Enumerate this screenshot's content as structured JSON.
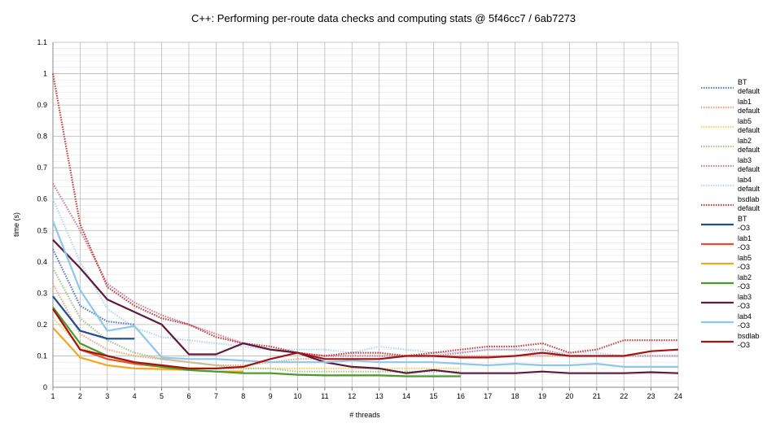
{
  "chart_data": {
    "type": "line",
    "title": "C++: Performing per-route data checks and computing stats @ 5f46cc7 / 6ab7273",
    "xlabel": "# threads",
    "ylabel": "time (s)",
    "xlim": [
      1,
      24
    ],
    "ylim": [
      0,
      1.1
    ],
    "x_ticks": [
      1,
      2,
      3,
      4,
      5,
      6,
      7,
      8,
      9,
      10,
      11,
      12,
      13,
      14,
      15,
      16,
      17,
      18,
      19,
      20,
      21,
      22,
      23,
      24
    ],
    "y_ticks": [
      0,
      0.1,
      0.2,
      0.3,
      0.4,
      0.5,
      0.6,
      0.7,
      0.8,
      0.9,
      1,
      1.1
    ],
    "y_tick_labels": [
      "0",
      "0.1",
      "0.2",
      "0.3",
      "0.4",
      "0.5",
      "0.6",
      "0.7",
      "0.8",
      "0.9",
      "1",
      "1.1"
    ],
    "grid": true,
    "legend_position": "right",
    "series": [
      {
        "name": "BT default",
        "line1": "BT",
        "line2": "default",
        "color": "#5a7fb5",
        "style": "dotted",
        "x": [
          1,
          2,
          3,
          4
        ],
        "values": [
          0.44,
          0.26,
          0.21,
          0.2
        ]
      },
      {
        "name": "lab1 default",
        "line1": "lab1",
        "line2": "default",
        "color": "#f4a582",
        "style": "dotted",
        "x": [
          1,
          2,
          3,
          4,
          5,
          6,
          7,
          8,
          9,
          10,
          11,
          12,
          13,
          14,
          15,
          16,
          17,
          18,
          19,
          20,
          21,
          22,
          23,
          24
        ],
        "values": [
          0.33,
          0.17,
          0.12,
          0.1,
          0.09,
          0.08,
          0.07,
          0.07,
          0.08,
          0.09,
          0.09,
          0.09,
          0.09,
          0.1,
          0.1,
          0.1,
          0.1,
          0.1,
          0.1,
          0.1,
          0.1,
          0.1,
          0.1,
          0.1
        ]
      },
      {
        "name": "lab5 default",
        "line1": "lab5",
        "line2": "default",
        "color": "#f2d36b",
        "style": "dotted",
        "x": [
          1,
          2,
          3,
          4,
          5,
          6,
          7,
          8,
          9,
          10,
          11,
          12,
          13,
          14,
          15,
          16
        ],
        "values": [
          0.22,
          0.13,
          0.09,
          0.08,
          0.07,
          0.06,
          0.06,
          0.06,
          0.06,
          0.06,
          0.06,
          0.06,
          0.06,
          0.06,
          0.06,
          0.06
        ]
      },
      {
        "name": "lab2 default",
        "line1": "lab2",
        "line2": "default",
        "color": "#a6c98c",
        "style": "dotted",
        "x": [
          1,
          2,
          3,
          4,
          5,
          6,
          7,
          8,
          9,
          10,
          11,
          12,
          13,
          14,
          15,
          16
        ],
        "values": [
          0.38,
          0.22,
          0.15,
          0.11,
          0.09,
          0.08,
          0.07,
          0.06,
          0.06,
          0.05,
          0.05,
          0.05,
          0.05,
          0.05,
          0.05,
          0.05
        ]
      },
      {
        "name": "lab3 default",
        "line1": "lab3",
        "line2": "default",
        "color": "#c4819a",
        "style": "dotted",
        "x": [
          1,
          2,
          3,
          4,
          5,
          6,
          7,
          8,
          9,
          10,
          11,
          12,
          13,
          14,
          15,
          16,
          17,
          18,
          19,
          20,
          21,
          22,
          23,
          24
        ],
        "values": [
          0.65,
          0.5,
          0.33,
          0.27,
          0.23,
          0.2,
          0.17,
          0.14,
          0.12,
          0.11,
          0.1,
          0.1,
          0.1,
          0.1,
          0.1,
          0.11,
          0.12,
          0.12,
          0.12,
          0.1,
          0.1,
          0.1,
          0.1,
          0.1
        ]
      },
      {
        "name": "lab4 default",
        "line1": "lab4",
        "line2": "default",
        "color": "#b8d8f0",
        "style": "dotted",
        "x": [
          1,
          2,
          3,
          4,
          5,
          6,
          7,
          8,
          9,
          10,
          11,
          12,
          13,
          14,
          15,
          16,
          17,
          18,
          19,
          20,
          21,
          22,
          23,
          24
        ],
        "values": [
          0.6,
          0.4,
          0.25,
          0.19,
          0.16,
          0.15,
          0.14,
          0.13,
          0.12,
          0.12,
          0.12,
          0.11,
          0.13,
          0.12,
          0.11,
          0.11,
          0.12,
          0.12,
          0.11,
          0.11,
          0.11,
          0.1,
          0.1,
          0.1
        ]
      },
      {
        "name": "bsdlab default",
        "line1": "bsdlab",
        "line2": "default",
        "color": "#c43c3c",
        "style": "dotted",
        "x": [
          1,
          2,
          3,
          4,
          5,
          6,
          7,
          8,
          9,
          10,
          11,
          12,
          13,
          14,
          15,
          16,
          17,
          18,
          19,
          20,
          21,
          22,
          23,
          24
        ],
        "values": [
          1.0,
          0.52,
          0.32,
          0.26,
          0.22,
          0.2,
          0.16,
          0.14,
          0.13,
          0.11,
          0.1,
          0.11,
          0.11,
          0.1,
          0.11,
          0.12,
          0.13,
          0.13,
          0.14,
          0.11,
          0.12,
          0.15,
          0.15,
          0.15
        ]
      },
      {
        "name": "BT -O3",
        "line1": "BT",
        "line2": "-O3",
        "color": "#1f4e8c",
        "style": "solid",
        "x": [
          1,
          2,
          3,
          4
        ],
        "values": [
          0.29,
          0.18,
          0.155,
          0.155
        ]
      },
      {
        "name": "lab1 -O3",
        "line1": "lab1",
        "line2": "-O3",
        "color": "#e8502a",
        "style": "solid",
        "x": [
          1,
          2,
          3,
          4,
          5,
          6,
          7,
          8
        ],
        "values": [
          0.25,
          0.12,
          0.09,
          0.075,
          0.065,
          0.055,
          0.05,
          0.05
        ]
      },
      {
        "name": "lab5 -O3",
        "line1": "lab5",
        "line2": "-O3",
        "color": "#f5a623",
        "style": "solid",
        "x": [
          1,
          2,
          3,
          4,
          5,
          6,
          7,
          8
        ],
        "values": [
          0.19,
          0.095,
          0.07,
          0.06,
          0.058,
          0.055,
          0.05,
          0.05
        ]
      },
      {
        "name": "lab2 -O3",
        "line1": "lab2",
        "line2": "-O3",
        "color": "#4c9a2a",
        "style": "solid",
        "x": [
          1,
          2,
          3,
          4,
          5,
          6,
          7,
          8,
          9,
          10,
          11,
          12,
          13,
          14,
          15,
          16
        ],
        "values": [
          0.255,
          0.14,
          0.1,
          0.08,
          0.065,
          0.055,
          0.05,
          0.045,
          0.045,
          0.04,
          0.038,
          0.038,
          0.038,
          0.035,
          0.035,
          0.035
        ]
      },
      {
        "name": "lab3 -O3",
        "line1": "lab3",
        "line2": "-O3",
        "color": "#5e1a3a",
        "style": "solid",
        "x": [
          1,
          2,
          3,
          4,
          5,
          6,
          7,
          8,
          9,
          10,
          11,
          12,
          13,
          14,
          15,
          16,
          17,
          18,
          19,
          20,
          21,
          22,
          23,
          24
        ],
        "values": [
          0.47,
          0.38,
          0.28,
          0.24,
          0.2,
          0.105,
          0.105,
          0.14,
          0.12,
          0.11,
          0.08,
          0.065,
          0.06,
          0.045,
          0.055,
          0.045,
          0.045,
          0.045,
          0.05,
          0.045,
          0.045,
          0.045,
          0.048,
          0.045
        ]
      },
      {
        "name": "lab4 -O3",
        "line1": "lab4",
        "line2": "-O3",
        "color": "#8ec7ec",
        "style": "solid",
        "x": [
          1,
          2,
          3,
          4,
          5,
          6,
          7,
          8,
          9,
          10,
          11,
          12,
          13,
          14,
          15,
          16,
          17,
          18,
          19,
          20,
          21,
          22,
          23,
          24
        ],
        "values": [
          0.53,
          0.31,
          0.18,
          0.195,
          0.095,
          0.09,
          0.09,
          0.085,
          0.08,
          0.08,
          0.08,
          0.085,
          0.08,
          0.08,
          0.08,
          0.075,
          0.07,
          0.075,
          0.07,
          0.07,
          0.075,
          0.065,
          0.065,
          0.065
        ]
      },
      {
        "name": "bsdlab -O3",
        "line1": "bsdlab",
        "line2": "-O3",
        "color": "#a31515",
        "style": "solid",
        "x": [
          1,
          2,
          3,
          4,
          5,
          6,
          7,
          8,
          9,
          10,
          11,
          12,
          13,
          14,
          15,
          16,
          17,
          18,
          19,
          20,
          21,
          22,
          23,
          24
        ],
        "values": [
          0.25,
          0.12,
          0.1,
          0.08,
          0.07,
          0.06,
          0.06,
          0.065,
          0.09,
          0.11,
          0.09,
          0.09,
          0.09,
          0.1,
          0.1,
          0.095,
          0.095,
          0.1,
          0.11,
          0.1,
          0.1,
          0.1,
          0.115,
          0.12
        ]
      }
    ]
  }
}
